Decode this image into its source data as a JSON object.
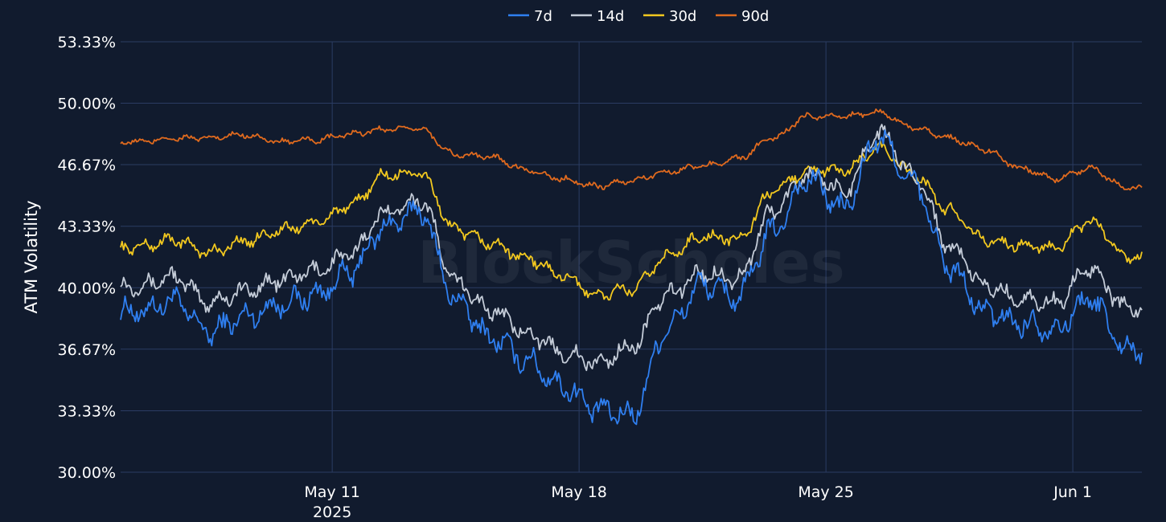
{
  "chart_data": {
    "type": "line",
    "title": "",
    "xlabel": "",
    "ylabel": "ATM Volatility",
    "watermark": "BlockScholes",
    "legend_placement": "top-center",
    "grid": true,
    "ylim": [
      30.0,
      53.33
    ],
    "y_ticks": [
      "30.00%",
      "33.33%",
      "36.67%",
      "40.00%",
      "43.33%",
      "46.67%",
      "50.00%",
      "53.33%"
    ],
    "y_tick_values": [
      30.0,
      33.33,
      36.67,
      40.0,
      43.33,
      46.67,
      50.0,
      53.33
    ],
    "x_range": [
      "2025-05-05T00:00",
      "2025-06-02T23:00"
    ],
    "x_ticks": [
      {
        "date": "2025-05-11",
        "label": "May 11",
        "sublabel": "2025"
      },
      {
        "date": "2025-05-18",
        "label": "May 18",
        "sublabel": ""
      },
      {
        "date": "2025-05-25",
        "label": "May 25",
        "sublabel": ""
      },
      {
        "date": "2025-06-01",
        "label": "Jun 1",
        "sublabel": ""
      }
    ],
    "series_dates": [
      "2025-05-05",
      "2025-05-06",
      "2025-05-07",
      "2025-05-08",
      "2025-05-09",
      "2025-05-10",
      "2025-05-11",
      "2025-05-12",
      "2025-05-13",
      "2025-05-14",
      "2025-05-15",
      "2025-05-16",
      "2025-05-17",
      "2025-05-18",
      "2025-05-19",
      "2025-05-20",
      "2025-05-21",
      "2025-05-22",
      "2025-05-23",
      "2025-05-24",
      "2025-05-25",
      "2025-05-26",
      "2025-05-27",
      "2025-05-28",
      "2025-05-29",
      "2025-05-30",
      "2025-05-31",
      "2025-06-01",
      "2025-06-02",
      "2025-06-03"
    ],
    "series": [
      {
        "name": "7d",
        "color": "#2f7ff0",
        "values": [
          38.7,
          39.3,
          37.6,
          38.4,
          39.1,
          39.6,
          40.8,
          43.3,
          44.2,
          39.3,
          37.3,
          36.1,
          34.7,
          33.4,
          33.1,
          37.8,
          40.2,
          39.5,
          43.1,
          45.9,
          44.3,
          48.1,
          45.6,
          41.1,
          38.7,
          38.1,
          37.8,
          39.4,
          36.7,
          36.4
        ]
      },
      {
        "name": "14d",
        "color": "#c4ccd8",
        "values": [
          40.1,
          40.6,
          39.2,
          39.8,
          40.4,
          40.9,
          41.8,
          44.1,
          44.8,
          40.3,
          38.8,
          37.6,
          36.5,
          35.9,
          36.8,
          39.6,
          40.8,
          40.5,
          44.2,
          46.1,
          45.2,
          48.4,
          46.1,
          42.3,
          40.1,
          39.4,
          39.2,
          41.1,
          38.9,
          38.8
        ]
      },
      {
        "name": "30d",
        "color": "#f2c81f",
        "values": [
          42.2,
          42.6,
          41.9,
          42.5,
          43.1,
          43.5,
          44.4,
          46.1,
          46.2,
          43.1,
          42.4,
          41.6,
          40.7,
          39.6,
          39.9,
          41.7,
          42.8,
          42.6,
          45.2,
          46.4,
          46.3,
          47.6,
          46.1,
          44.2,
          42.6,
          42.3,
          42.1,
          43.6,
          41.7,
          41.4
        ]
      },
      {
        "name": "90d",
        "color": "#e06a1e",
        "values": [
          47.9,
          48.1,
          48.1,
          48.3,
          47.9,
          48.0,
          48.3,
          48.6,
          48.6,
          47.2,
          47.1,
          46.4,
          45.9,
          45.5,
          45.8,
          46.3,
          46.6,
          47.0,
          48.1,
          49.3,
          49.3,
          49.5,
          48.7,
          48.1,
          47.5,
          46.5,
          45.9,
          46.5,
          45.4,
          45.3
        ]
      }
    ]
  }
}
